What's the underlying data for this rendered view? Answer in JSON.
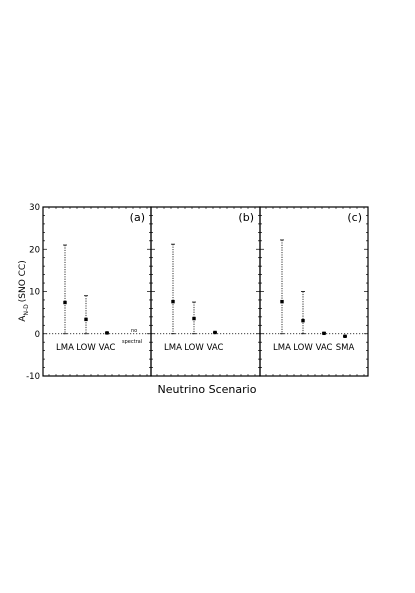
{
  "chart_data": {
    "type": "scatter",
    "x_label": "Neutrino Scenario",
    "y_label_main": "A",
    "y_label_sub": "N-D",
    "y_label_paren": "(SNO CC)",
    "ylim": [
      -10,
      30
    ],
    "y_ticks": [
      "30",
      "20",
      "10",
      "0",
      "-10"
    ],
    "reference_line": 0,
    "grid": false,
    "annotation": {
      "line1": "no",
      "line2": "spectral"
    },
    "panels": [
      {
        "label": "(a)",
        "categories": [
          "LMA",
          "LOW",
          "VAC"
        ],
        "points": [
          {
            "category": "LMA",
            "y": 7.4,
            "y_low": 0,
            "y_high": 21
          },
          {
            "category": "LOW",
            "y": 3.4,
            "y_low": 0,
            "y_high": 9.0
          },
          {
            "category": "VAC",
            "y": 0.2,
            "y_low": 0.1,
            "y_high": 0.3
          }
        ]
      },
      {
        "label": "(b)",
        "categories": [
          "LMA",
          "LOW",
          "VAC"
        ],
        "points": [
          {
            "category": "LMA",
            "y": 7.6,
            "y_low": 0,
            "y_high": 21.2
          },
          {
            "category": "LOW",
            "y": 3.6,
            "y_low": 0,
            "y_high": 7.5
          },
          {
            "category": "VAC",
            "y": 0.3,
            "y_low": 0.2,
            "y_high": 0.4
          }
        ]
      },
      {
        "label": "(c)",
        "categories": [
          "LMA",
          "LOW",
          "VAC",
          "SMA"
        ],
        "points": [
          {
            "category": "LMA",
            "y": 7.6,
            "y_low": 0,
            "y_high": 22.2
          },
          {
            "category": "LOW",
            "y": 3.1,
            "y_low": 0,
            "y_high": 10.0
          },
          {
            "category": "VAC",
            "y": 0.1,
            "y_low": 0.0,
            "y_high": 0.3
          },
          {
            "category": "SMA",
            "y": -0.6,
            "y_low": -0.7,
            "y_high": -0.5
          }
        ]
      }
    ]
  }
}
